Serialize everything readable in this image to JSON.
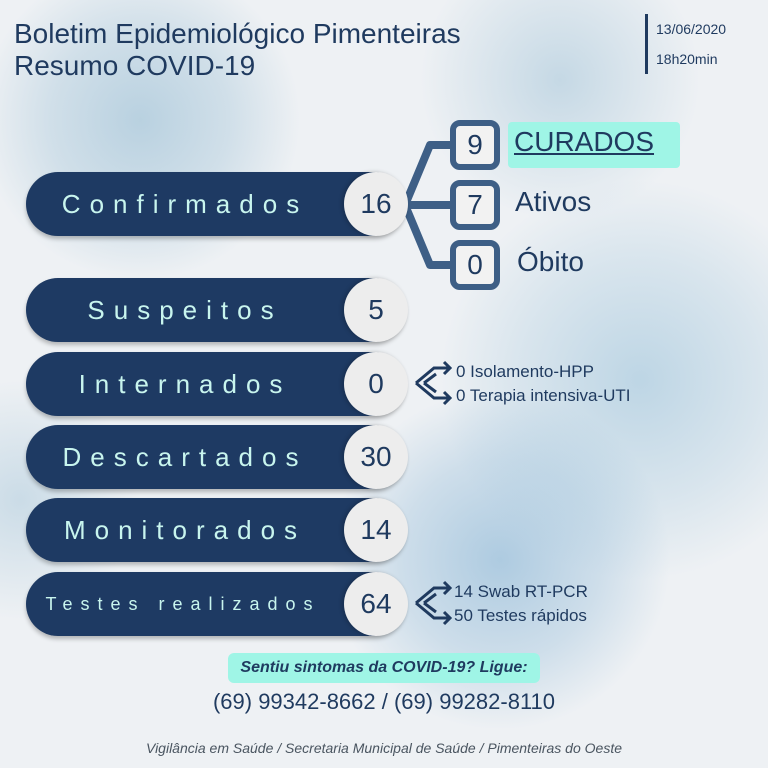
{
  "header": {
    "title_line1": "Boletim Epidemiológico Pimenteiras",
    "title_line2": "Resumo COVID-19",
    "date": "13/06/2020",
    "time": "18h20min"
  },
  "confirmed": {
    "label": "Confirmados",
    "value": "16",
    "breakdown": [
      {
        "value": "9",
        "label": "CURADOS"
      },
      {
        "value": "7",
        "label": "Ativos"
      },
      {
        "value": "0",
        "label": "Óbito"
      }
    ]
  },
  "rows": [
    {
      "label": "Suspeitos",
      "value": "5"
    },
    {
      "label": "Internados",
      "value": "0",
      "details": [
        "0 Isolamento-HPP",
        "0 Terapia intensiva-UTI"
      ]
    },
    {
      "label": "Descartados",
      "value": "30"
    },
    {
      "label": "Monitorados",
      "value": "14"
    },
    {
      "label": "Testes realizados",
      "value": "64",
      "details": [
        "14 Swab RT-PCR",
        "50 Testes rápidos"
      ]
    }
  ],
  "contact": {
    "prompt": "Sentiu sintomas da COVID-19? Ligue:",
    "phones": "(69) 99342-8662 / (69) 99282-8110"
  },
  "footer": "Vigilância em Saúde / Secretaria Municipal de Saúde / Pimenteiras do Oeste",
  "colors": {
    "navy": "#1e3a63",
    "mint": "#9ff5e6",
    "label_text": "#c8f5ee"
  }
}
